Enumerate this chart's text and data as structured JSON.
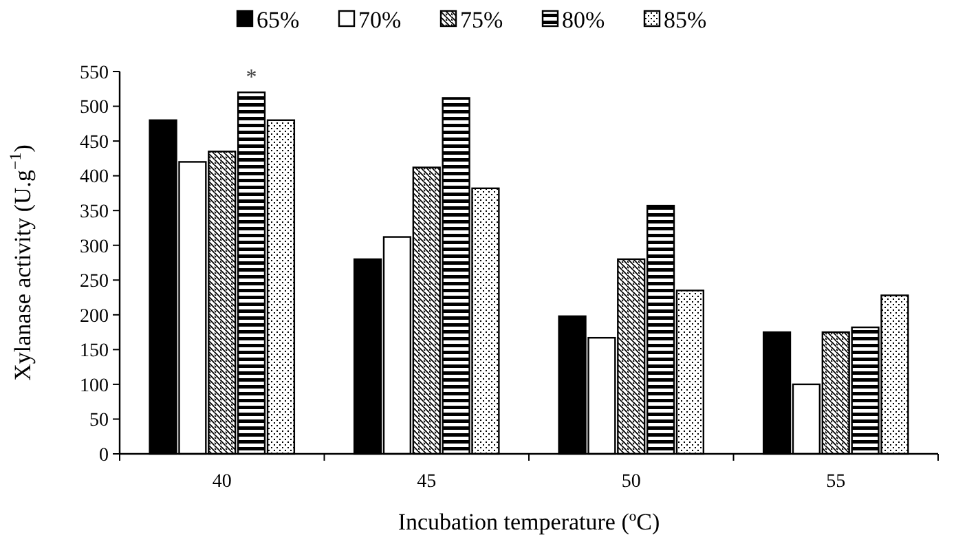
{
  "chart_data": {
    "type": "bar",
    "xlabel": "Incubation temperature (ºC)",
    "ylabel": "Xylanase activity (U.g$^{−1}$)",
    "categories": [
      "40",
      "45",
      "50",
      "55"
    ],
    "series": [
      {
        "name": "65%",
        "color": "#000000",
        "values": [
          480,
          280,
          198,
          175
        ]
      },
      {
        "name": "70%",
        "color": "#ffffff",
        "values": [
          420,
          312,
          167,
          100
        ]
      },
      {
        "name": "75%",
        "color": "#000000",
        "values": [
          435,
          412,
          280,
          175
        ]
      },
      {
        "name": "80%",
        "color": "#000000",
        "values": [
          520,
          512,
          357,
          182
        ]
      },
      {
        "name": "85%",
        "color": "#000000",
        "values": [
          480,
          382,
          235,
          228
        ]
      }
    ],
    "ylim": [
      0,
      550
    ],
    "yticks": [
      0,
      50,
      100,
      150,
      200,
      250,
      300,
      350,
      400,
      450,
      500,
      550
    ],
    "legend": "top",
    "grid": false,
    "annotations": [
      "*"
    ]
  }
}
